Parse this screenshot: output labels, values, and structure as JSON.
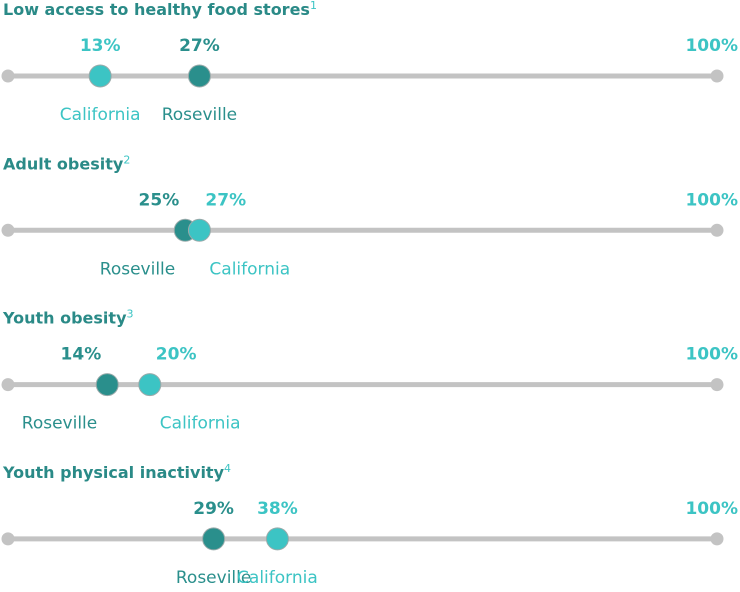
{
  "chart_data": [
    {
      "type": "dot",
      "title": "Low access to healthy food stores",
      "footnote": "1",
      "xlim": [
        0,
        100
      ],
      "xticks": [
        {
          "value": 100,
          "label": "100%"
        }
      ],
      "series": [
        {
          "name": "Roseville",
          "color": "#2a8f8c",
          "values": [
            27
          ],
          "value_labels": [
            "27%"
          ]
        },
        {
          "name": "California",
          "color": "#3cc4c4",
          "values": [
            13
          ],
          "value_labels": [
            "13%"
          ]
        }
      ]
    },
    {
      "type": "dot",
      "title": "Adult obesity",
      "footnote": "2",
      "xlim": [
        0,
        100
      ],
      "xticks": [
        {
          "value": 100,
          "label": "100%"
        }
      ],
      "series": [
        {
          "name": "Roseville",
          "color": "#2a8f8c",
          "values": [
            25
          ],
          "value_labels": [
            "25%"
          ]
        },
        {
          "name": "California",
          "color": "#3cc4c4",
          "values": [
            27
          ],
          "value_labels": [
            "27%"
          ]
        }
      ]
    },
    {
      "type": "dot",
      "title": "Youth obesity",
      "footnote": "3",
      "xlim": [
        0,
        100
      ],
      "xticks": [
        {
          "value": 100,
          "label": "100%"
        }
      ],
      "series": [
        {
          "name": "Roseville",
          "color": "#2a8f8c",
          "values": [
            14
          ],
          "value_labels": [
            "14%"
          ]
        },
        {
          "name": "California",
          "color": "#3cc4c4",
          "values": [
            20
          ],
          "value_labels": [
            "20%"
          ]
        }
      ]
    },
    {
      "type": "dot",
      "title": "Youth physical inactivity",
      "footnote": "4",
      "xlim": [
        0,
        100
      ],
      "xticks": [
        {
          "value": 100,
          "label": "100%"
        }
      ],
      "series": [
        {
          "name": "Roseville",
          "color": "#2a8f8c",
          "values": [
            29
          ],
          "value_labels": [
            "29%"
          ]
        },
        {
          "name": "California",
          "color": "#3cc4c4",
          "values": [
            38
          ],
          "value_labels": [
            "38%"
          ]
        }
      ]
    }
  ]
}
